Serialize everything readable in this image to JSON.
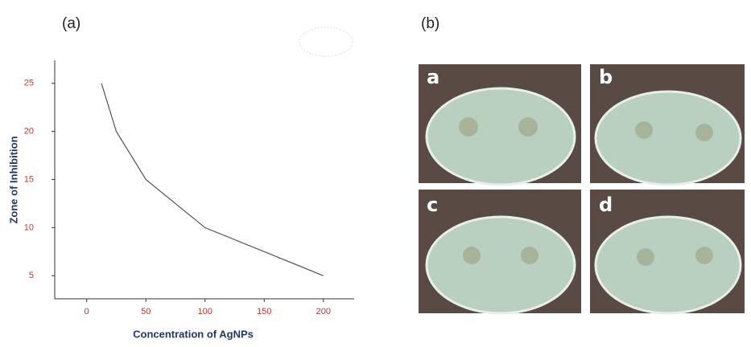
{
  "chart_data": {
    "type": "line",
    "xlabel": "Concentration of AgNPs",
    "ylabel": "Zone of Inhibition",
    "x": [
      12.5,
      25,
      50,
      100,
      200
    ],
    "values": [
      25,
      20,
      15,
      10,
      5
    ],
    "color": "#555555",
    "xlim": [
      -27,
      226
    ],
    "ylim": [
      2.6,
      27.4
    ],
    "xticks": [
      0,
      50,
      100,
      150,
      200
    ],
    "yticks": [
      5,
      10,
      15,
      20,
      25
    ]
  },
  "panels": {
    "left_label": "(a)",
    "right_label": "(b)",
    "photos": [
      "a",
      "b",
      "c",
      "d"
    ]
  }
}
